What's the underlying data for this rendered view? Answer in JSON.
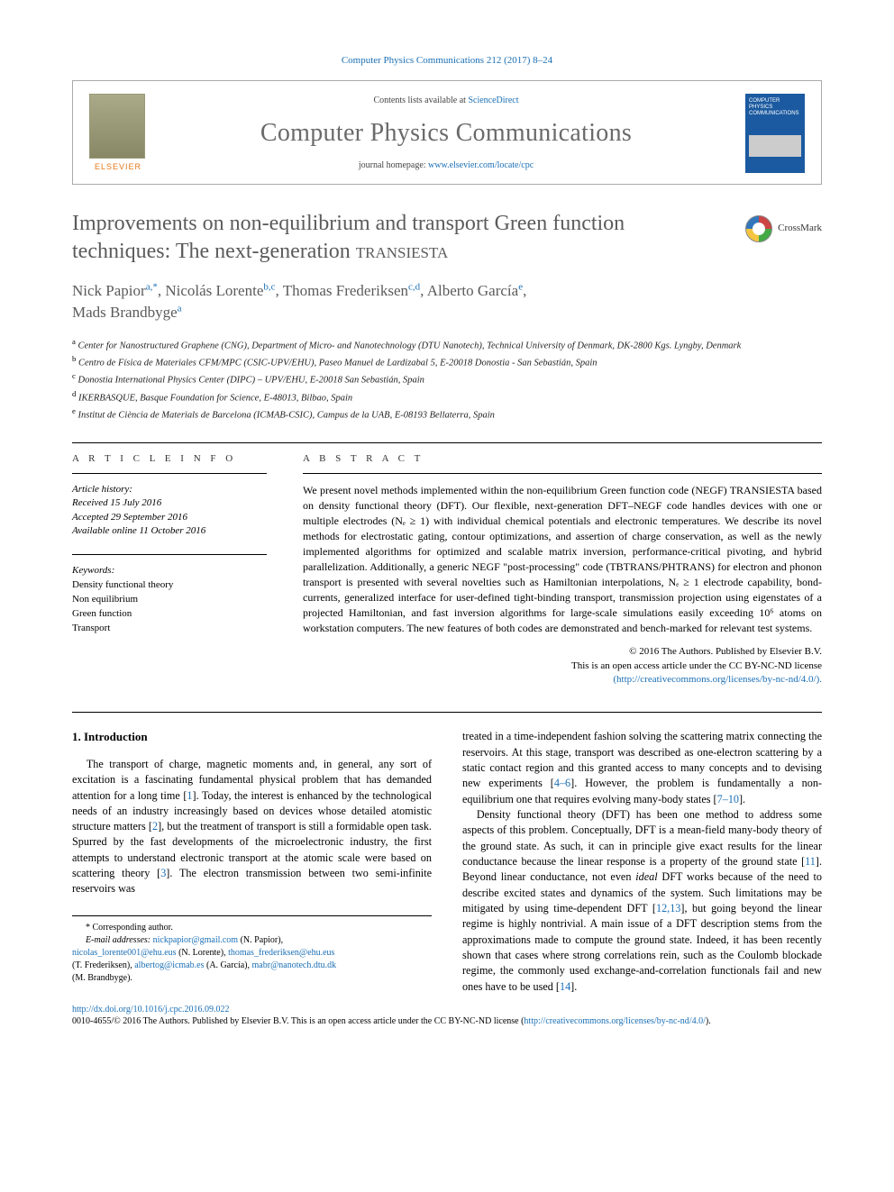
{
  "citation": {
    "text": "Computer Physics Communications 212 (2017) 8–24",
    "url_label": "Computer Physics Communications 212 (2017) 8–24"
  },
  "header": {
    "publisher_word": "ELSEVIER",
    "contents_line_prefix": "Contents lists available at ",
    "contents_line_link": "ScienceDirect",
    "journal_name": "Computer Physics Communications",
    "homepage_prefix": "journal homepage: ",
    "homepage_link": "www.elsevier.com/locate/cpc",
    "cover_text": "COMPUTER PHYSICS COMMUNICATIONS"
  },
  "title": {
    "line1": "Improvements on non-equilibrium and transport Green function",
    "line2_prefix": "techniques: The next-generation ",
    "line2_sc": "transiesta"
  },
  "crossmark_label": "CrossMark",
  "authors": {
    "a1_name": "Nick Papior",
    "a1_sup": "a,*",
    "a2_name": "Nicolás Lorente",
    "a2_sup": "b,c",
    "a3_name": "Thomas Frederiksen",
    "a3_sup": "c,d",
    "a4_name": "Alberto García",
    "a4_sup": "e",
    "a5_name": "Mads Brandbyge",
    "a5_sup": "a"
  },
  "affils": {
    "a": "Center for Nanostructured Graphene (CNG), Department of Micro- and Nanotechnology (DTU Nanotech), Technical University of Denmark, DK-2800 Kgs. Lyngby, Denmark",
    "b": "Centro de Física de Materiales CFM/MPC (CSIC-UPV/EHU), Paseo Manuel de Lardizabal 5, E-20018 Donostia - San Sebastián, Spain",
    "c": "Donostia International Physics Center (DIPC) – UPV/EHU, E-20018 San Sebastián, Spain",
    "d": "IKERBASQUE, Basque Foundation for Science, E-48013, Bilbao, Spain",
    "e": "Institut de Ciència de Materials de Barcelona (ICMAB-CSIC), Campus de la UAB, E-08193 Bellaterra, Spain"
  },
  "info": {
    "heading": "A R T I C L E   I N F O",
    "history_label": "Article history:",
    "received": "Received 15 July 2016",
    "accepted": "Accepted 29 September 2016",
    "online": "Available online 11 October 2016",
    "keywords_label": "Keywords:",
    "kw1": "Density functional theory",
    "kw2": "Non equilibrium",
    "kw3": "Green function",
    "kw4": "Transport"
  },
  "abstract": {
    "heading": "A B S T R A C T",
    "body": "We present novel methods implemented within the non-equilibrium Green function code (NEGF) TRANSIESTA based on density functional theory (DFT). Our flexible, next-generation DFT–NEGF code handles devices with one or multiple electrodes (Nₑ ≥ 1) with individual chemical potentials and electronic temperatures. We describe its novel methods for electrostatic gating, contour optimizations, and assertion of charge conservation, as well as the newly implemented algorithms for optimized and scalable matrix inversion, performance-critical pivoting, and hybrid parallelization. Additionally, a generic NEGF \"post-processing\" code (TBTRANS/PHTRANS) for electron and phonon transport is presented with several novelties such as Hamiltonian interpolations, Nₑ ≥ 1 electrode capability, bond-currents, generalized interface for user-defined tight-binding transport, transmission projection using eigenstates of a projected Hamiltonian, and fast inversion algorithms for large-scale simulations easily exceeding 10⁶ atoms on workstation computers. The new features of both codes are demonstrated and bench-marked for relevant test systems.",
    "copyright_line1": "© 2016 The Authors. Published by Elsevier B.V.",
    "copyright_line2": "This is an open access article under the CC BY-NC-ND license",
    "copyright_link": "(http://creativecommons.org/licenses/by-nc-nd/4.0/)."
  },
  "intro": {
    "heading": "1.  Introduction",
    "p1": "The transport of charge, magnetic moments and, in general, any sort of excitation is a fascinating fundamental physical problem that has demanded attention for a long time [1]. Today, the interest is enhanced by the technological needs of an industry increasingly based on devices whose detailed atomistic structure matters [2], but the treatment of transport is still a formidable open task. Spurred by the fast developments of the microelectronic industry, the first attempts to understand electronic transport at the atomic scale were based on scattering theory [3]. The electron transmission between two semi-infinite reservoirs was",
    "p2": "treated in a time-independent fashion solving the scattering matrix connecting the reservoirs. At this stage, transport was described as one-electron scattering by a static contact region and this granted access to many concepts and to devising new experiments [4–6]. However, the problem is fundamentally a non-equilibrium one that requires evolving many-body states [7–10].",
    "p3": "Density functional theory (DFT) has been one method to address some aspects of this problem. Conceptually, DFT is a mean-field many-body theory of the ground state. As such, it can in principle give exact results for the linear conductance because the linear response is a property of the ground state [11]. Beyond linear conductance, not even ideal DFT works because of the need to describe excited states and dynamics of the system. Such limitations may be mitigated by using time-dependent DFT [12,13], but going beyond the linear regime is highly nontrivial. A main issue of a DFT description stems from the approximations made to compute the ground state. Indeed, it has been recently shown that cases where strong correlations rein, such as the Coulomb blockade regime, the commonly used exchange-and-correlation functionals fail and new ones have to be used [14]."
  },
  "footnotes": {
    "corr_label": "Corresponding author.",
    "email_label": "E-mail addresses:",
    "e1_addr": "nickpapior@gmail.com",
    "e1_who": " (N. Papior),",
    "e2_addr": "nicolas_lorente001@ehu.eus",
    "e2_who": " (N. Lorente), ",
    "e3_addr": "thomas_frederiksen@ehu.eus",
    "e3_who": "",
    "e3b_who": "(T. Frederiksen), ",
    "e4_addr": "albertog@icmab.es",
    "e4_who": " (A. García), ",
    "e5_addr": "mabr@nanotech.dtu.dk",
    "e5_who": "",
    "e5b_who": "(M. Brandbyge)."
  },
  "doi": {
    "url": "http://dx.doi.org/10.1016/j.cpc.2016.09.022",
    "issn_line_a": "0010-4655/© 2016 The Authors. Published by Elsevier B.V. This is an open access article under the CC BY-NC-ND license (",
    "issn_link": "http://creativecommons.org/licenses/by-nc-nd/4.0/",
    "issn_line_b": ")."
  },
  "colors": {
    "link": "#1a6fb5",
    "title_gray": "#5b5b5b",
    "orange": "#e67817",
    "cover_blue": "#1b5aa0"
  }
}
